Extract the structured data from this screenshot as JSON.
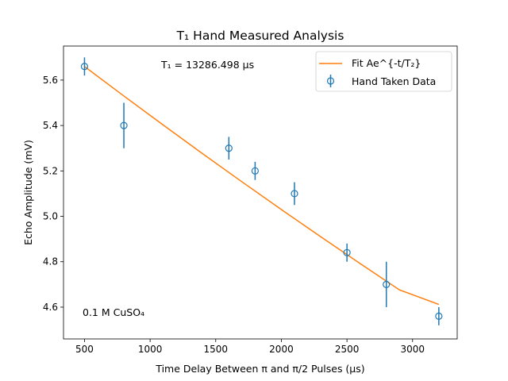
{
  "chart_data": {
    "type": "scatter",
    "title": "T₁ Hand Measured Analysis",
    "xlabel": "Time Delay Between π and π/2 Pulses (μs)",
    "ylabel": "Echo Amplitude (mV)",
    "xlim": [
      340,
      3340
    ],
    "ylim": [
      4.46,
      5.75
    ],
    "x_ticks": [
      500,
      1000,
      1500,
      2000,
      2500,
      3000
    ],
    "y_ticks": [
      4.6,
      4.8,
      5.0,
      5.2,
      5.4,
      5.6
    ],
    "y_tick_labels": [
      "4.6",
      "4.8",
      "5.0",
      "5.2",
      "5.4",
      "5.6"
    ],
    "grid": false,
    "legend_placement": "top-right",
    "series": [
      {
        "name": "Hand Taken Data",
        "kind": "errorbar",
        "marker": "open-circle",
        "color": "#1f77b4",
        "x": [
          500,
          800,
          1600,
          1800,
          2100,
          2500,
          2800,
          3200
        ],
        "y": [
          5.66,
          5.4,
          5.3,
          5.2,
          5.1,
          4.84,
          4.7,
          4.56
        ],
        "yerr": [
          0.04,
          0.1,
          0.05,
          0.04,
          0.05,
          0.04,
          0.1,
          0.04
        ]
      },
      {
        "name": "Fit Ae^{-t/T₂}",
        "kind": "line",
        "color": "#ff7f0e",
        "x": [
          500,
          800,
          1100,
          1400,
          1700,
          2000,
          2300,
          2600,
          2900,
          3200
        ],
        "y": [
          5.66,
          5.53,
          5.402,
          5.276,
          5.152,
          5.03,
          4.91,
          4.792,
          4.676,
          4.612
        ]
      }
    ],
    "annotations": [
      {
        "text": "T₁ = 13286.498 μs",
        "position": "top-center"
      },
      {
        "text": "0.1 M CuSO₄",
        "position": "bottom-left"
      }
    ]
  }
}
